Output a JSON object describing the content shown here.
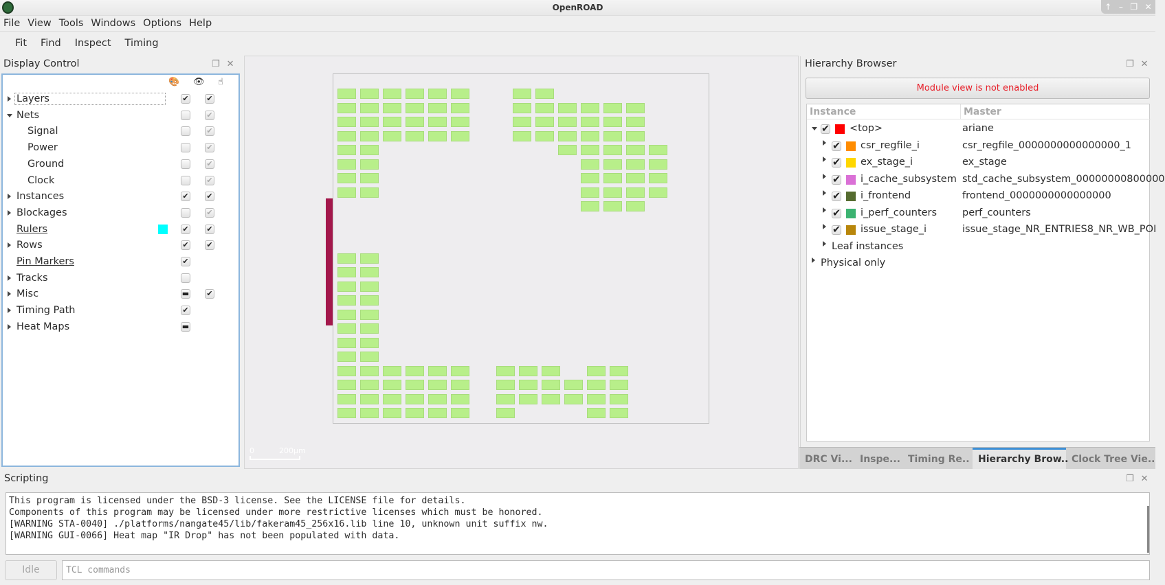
{
  "window": {
    "title": "OpenROAD",
    "controls": [
      "↑",
      "–",
      "❐",
      "✕"
    ]
  },
  "menu": [
    "File",
    "View",
    "Tools",
    "Windows",
    "Options",
    "Help"
  ],
  "toolbar": [
    "Fit",
    "Find",
    "Inspect",
    "Timing"
  ],
  "display_control": {
    "title": "Display Control",
    "header_icons": [
      "palette-icon",
      "eye-icon",
      "pointer-icon"
    ],
    "rows": [
      {
        "label": "Layers",
        "level": 0,
        "expander": "collapsed",
        "visible": "checked",
        "selectable": "checked"
      },
      {
        "label": "Nets",
        "level": 0,
        "expander": "expanded",
        "visible": "unchecked",
        "selectable": "dim-checked"
      },
      {
        "label": "Signal",
        "level": 1,
        "visible": "unchecked",
        "selectable": "dim-checked"
      },
      {
        "label": "Power",
        "level": 1,
        "visible": "unchecked",
        "selectable": "dim-checked"
      },
      {
        "label": "Ground",
        "level": 1,
        "visible": "unchecked",
        "selectable": "dim-checked"
      },
      {
        "label": "Clock",
        "level": 1,
        "visible": "unchecked",
        "selectable": "dim-checked"
      },
      {
        "label": "Instances",
        "level": 0,
        "expander": "collapsed",
        "visible": "checked",
        "selectable": "checked"
      },
      {
        "label": "Blockages",
        "level": 0,
        "expander": "collapsed",
        "visible": "unchecked",
        "selectable": "dim-checked"
      },
      {
        "label": "Rulers",
        "level": 0,
        "underline": true,
        "color": "#00ffff",
        "visible": "checked",
        "selectable": "checked"
      },
      {
        "label": "Rows",
        "level": 0,
        "expander": "collapsed",
        "visible": "checked",
        "selectable": "checked"
      },
      {
        "label": "Pin Markers",
        "level": 0,
        "underline": true,
        "visible": "checked"
      },
      {
        "label": "Tracks",
        "level": 0,
        "expander": "collapsed",
        "visible": "unchecked"
      },
      {
        "label": "Misc",
        "level": 0,
        "expander": "collapsed",
        "visible": "partial",
        "selectable": "checked"
      },
      {
        "label": "Timing Path",
        "level": 0,
        "expander": "collapsed",
        "visible": "checked"
      },
      {
        "label": "Heat Maps",
        "level": 0,
        "expander": "collapsed",
        "visible": "partial"
      }
    ]
  },
  "layout_view": {
    "scale_label": "0",
    "scale_value": "200μm",
    "block_color": "#b8ef8a",
    "pin_color": "#a3174b"
  },
  "hierarchy": {
    "title": "Hierarchy Browser",
    "module_button": "Module view is not enabled",
    "columns": [
      "Instance",
      "Master"
    ],
    "rows": [
      {
        "instance": "<top>",
        "master": "ariane",
        "color": "#ff0000",
        "level": 0,
        "expander": "expanded",
        "checked": true
      },
      {
        "instance": "csr_regfile_i",
        "master": "csr_regfile_0000000000000000_1",
        "color": "#ff8c00",
        "level": 1,
        "expander": "collapsed",
        "checked": true
      },
      {
        "instance": "ex_stage_i",
        "master": "ex_stage",
        "color": "#ffd700",
        "level": 1,
        "expander": "collapsed",
        "checked": true
      },
      {
        "instance": "i_cache_subsystem",
        "master": "std_cache_subsystem_00000000800000",
        "color": "#da70d6",
        "level": 1,
        "expander": "collapsed",
        "checked": true
      },
      {
        "instance": "i_frontend",
        "master": "frontend_0000000000000000",
        "color": "#556b2f",
        "level": 1,
        "expander": "collapsed",
        "checked": true
      },
      {
        "instance": "i_perf_counters",
        "master": "perf_counters",
        "color": "#3cb371",
        "level": 1,
        "expander": "collapsed",
        "checked": true
      },
      {
        "instance": "issue_stage_i",
        "master": "issue_stage_NR_ENTRIES8_NR_WB_POI",
        "color": "#b8860b",
        "level": 1,
        "expander": "collapsed",
        "checked": true
      },
      {
        "instance": "Leaf instances",
        "master": "",
        "level": 1,
        "expander": "collapsed"
      },
      {
        "instance": "Physical only",
        "master": "",
        "level": 0,
        "expander": "collapsed"
      }
    ]
  },
  "tabs": [
    {
      "label": "DRC Vi...",
      "active": false
    },
    {
      "label": "Inspe...",
      "active": false
    },
    {
      "label": "Timing Re..",
      "active": false
    },
    {
      "label": "Hierarchy Brow..",
      "active": true
    },
    {
      "label": "Clock Tree Vie..",
      "active": false
    }
  ],
  "scripting": {
    "title": "Scripting",
    "output": [
      "This program is licensed under the BSD-3 license. See the LICENSE file for details.",
      "Components of this program may be licensed under more restrictive licenses which must be honored.",
      "[WARNING STA-0040] ./platforms/nangate45/lib/fakeram45_256x16.lib line 10, unknown unit suffix nw.",
      "[WARNING GUI-0066] Heat map \"IR Drop\" has not been populated with data."
    ],
    "status": "Idle",
    "command_placeholder": "TCL commands",
    "command_value": ""
  }
}
